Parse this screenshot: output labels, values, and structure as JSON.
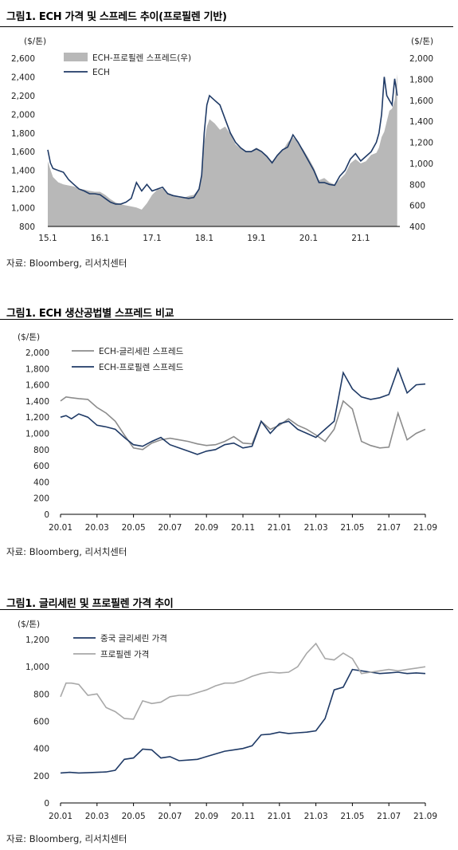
{
  "charts": [
    {
      "title": "그림1.  ECH 가격 및 스프레드 추이(프로필렌 기반)",
      "source": "자료: Bloomberg, 리서치센터",
      "chart_data": {
        "type": "area+line",
        "ylabel_left": "($/톤)",
        "ylabel_right": "($/톤)",
        "ylim_left": [
          800,
          2600
        ],
        "ylim_right": [
          400,
          2000
        ],
        "yticks_left": [
          "2,600",
          "2,400",
          "2,200",
          "2,000",
          "1,800",
          "1,600",
          "1,400",
          "1,200",
          "1,000",
          "800"
        ],
        "yticks_right": [
          "2,000",
          "1,800",
          "1,600",
          "1,400",
          "1,200",
          "1,000",
          "800",
          "600",
          "400"
        ],
        "xticks": [
          "15.1",
          "16.1",
          "17.1",
          "18.1",
          "19.1",
          "20.1",
          "21.1"
        ],
        "xlim": [
          2015.0,
          2021.75
        ],
        "series": [
          {
            "name": "ECH-프로필렌 스프레드(우)",
            "axis": "right",
            "color": "#b8b8b8",
            "kind": "area",
            "x": [
              2015.0,
              2015.05,
              2015.1,
              2015.2,
              2015.3,
              2015.4,
              2015.5,
              2015.6,
              2015.7,
              2015.8,
              2015.9,
              2016.0,
              2016.1,
              2016.2,
              2016.3,
              2016.4,
              2016.5,
              2016.6,
              2016.7,
              2016.8,
              2016.9,
              2017.0,
              2017.1,
              2017.2,
              2017.3,
              2017.4,
              2017.5,
              2017.6,
              2017.7,
              2017.8,
              2017.9,
              2017.95,
              2018.0,
              2018.05,
              2018.1,
              2018.2,
              2018.3,
              2018.4,
              2018.5,
              2018.6,
              2018.7,
              2018.8,
              2018.9,
              2019.0,
              2019.1,
              2019.2,
              2019.3,
              2019.4,
              2019.5,
              2019.6,
              2019.7,
              2019.8,
              2019.9,
              2020.0,
              2020.1,
              2020.2,
              2020.3,
              2020.4,
              2020.5,
              2020.6,
              2020.7,
              2020.8,
              2020.9,
              2021.0,
              2021.1,
              2021.2,
              2021.3,
              2021.35,
              2021.4,
              2021.45,
              2021.5,
              2021.55,
              2021.6,
              2021.65,
              2021.7
            ],
            "values": [
              1020,
              940,
              870,
              820,
              800,
              790,
              780,
              760,
              750,
              740,
              730,
              730,
              700,
              660,
              630,
              610,
              600,
              590,
              580,
              560,
              620,
              700,
              750,
              760,
              720,
              700,
              680,
              670,
              690,
              700,
              760,
              900,
              1200,
              1350,
              1420,
              1380,
              1320,
              1350,
              1280,
              1180,
              1140,
              1120,
              1120,
              1150,
              1120,
              1060,
              1020,
              1080,
              1120,
              1200,
              1250,
              1200,
              1130,
              1050,
              960,
              840,
              860,
              820,
              800,
              850,
              900,
              1000,
              1040,
              1000,
              1020,
              1080,
              1100,
              1150,
              1250,
              1300,
              1400,
              1500,
              1520,
              1600,
              1850
            ]
          },
          {
            "name": "ECH",
            "axis": "left",
            "color": "#1f3a66",
            "kind": "line",
            "x": [
              2015.0,
              2015.05,
              2015.1,
              2015.2,
              2015.3,
              2015.4,
              2015.5,
              2015.6,
              2015.7,
              2015.8,
              2015.9,
              2016.0,
              2016.1,
              2016.2,
              2016.3,
              2016.4,
              2016.5,
              2016.6,
              2016.7,
              2016.8,
              2016.9,
              2017.0,
              2017.1,
              2017.2,
              2017.3,
              2017.4,
              2017.5,
              2017.6,
              2017.7,
              2017.8,
              2017.9,
              2017.95,
              2018.0,
              2018.05,
              2018.1,
              2018.2,
              2018.3,
              2018.4,
              2018.5,
              2018.6,
              2018.7,
              2018.8,
              2018.9,
              2019.0,
              2019.1,
              2019.2,
              2019.3,
              2019.4,
              2019.5,
              2019.6,
              2019.7,
              2019.8,
              2019.9,
              2020.0,
              2020.1,
              2020.2,
              2020.3,
              2020.4,
              2020.5,
              2020.6,
              2020.7,
              2020.8,
              2020.9,
              2021.0,
              2021.1,
              2021.2,
              2021.3,
              2021.35,
              2021.4,
              2021.45,
              2021.5,
              2021.55,
              2021.6,
              2021.65,
              2021.7
            ],
            "values": [
              1620,
              1480,
              1420,
              1400,
              1380,
              1300,
              1250,
              1200,
              1180,
              1150,
              1150,
              1140,
              1100,
              1060,
              1040,
              1040,
              1060,
              1100,
              1270,
              1180,
              1250,
              1180,
              1200,
              1220,
              1150,
              1130,
              1120,
              1110,
              1100,
              1110,
              1200,
              1350,
              1800,
              2100,
              2200,
              2150,
              2100,
              1950,
              1800,
              1700,
              1640,
              1600,
              1600,
              1630,
              1600,
              1550,
              1480,
              1560,
              1620,
              1650,
              1780,
              1700,
              1600,
              1500,
              1400,
              1270,
              1270,
              1250,
              1240,
              1340,
              1400,
              1520,
              1580,
              1500,
              1550,
              1600,
              1700,
              1800,
              2000,
              2400,
              2200,
              2150,
              2100,
              2380,
              2200
            ]
          }
        ]
      }
    },
    {
      "title": "그림1.  ECH 생산공법별 스프레드 비교",
      "source": "자료: Bloomberg, 리서치센터",
      "chart_data": {
        "type": "line",
        "ylabel": "($/톤)",
        "ylim": [
          0,
          2000
        ],
        "yticks": [
          "2,000",
          "1,800",
          "1,600",
          "1,400",
          "1,200",
          "1,000",
          "800",
          "600",
          "400",
          "200",
          "0"
        ],
        "xticks": [
          "20.01",
          "20.03",
          "20.05",
          "20.07",
          "20.09",
          "20.11",
          "21.01",
          "21.03",
          "21.05",
          "21.07",
          "21.09"
        ],
        "xlim": [
          0,
          20
        ],
        "series": [
          {
            "name": "ECH-글리세린 스프레드",
            "color": "#8c8c8c",
            "x": [
              0,
              0.3,
              0.6,
              1,
              1.5,
              2,
              2.5,
              3,
              3.5,
              4,
              4.5,
              5,
              5.5,
              6,
              6.5,
              7,
              7.5,
              8,
              8.5,
              9,
              9.5,
              10,
              10.5,
              11,
              11.5,
              12,
              12.5,
              13,
              13.5,
              14,
              14.5,
              15,
              15.5,
              16,
              16.5,
              17,
              17.5,
              18,
              18.5,
              19,
              19.5,
              20
            ],
            "values": [
              1400,
              1450,
              1440,
              1430,
              1420,
              1320,
              1250,
              1150,
              980,
              820,
              800,
              880,
              920,
              940,
              920,
              900,
              870,
              850,
              860,
              900,
              960,
              880,
              870,
              1150,
              1050,
              1100,
              1180,
              1100,
              1050,
              980,
              900,
              1050,
              1400,
              1300,
              900,
              850,
              820,
              830,
              1250,
              920,
              1000,
              1050
            ]
          },
          {
            "name": "ECH-프로필렌 스프레드",
            "color": "#1f3a66",
            "x": [
              0,
              0.3,
              0.6,
              1,
              1.5,
              2,
              2.5,
              3,
              3.5,
              4,
              4.5,
              5,
              5.5,
              6,
              6.5,
              7,
              7.5,
              8,
              8.5,
              9,
              9.5,
              10,
              10.5,
              11,
              11.5,
              12,
              12.5,
              13,
              13.5,
              14,
              14.5,
              15,
              15.5,
              16,
              16.5,
              17,
              17.5,
              18,
              18.5,
              19,
              19.5,
              20
            ],
            "values": [
              1200,
              1220,
              1180,
              1240,
              1200,
              1100,
              1080,
              1050,
              950,
              860,
              840,
              900,
              950,
              860,
              820,
              780,
              740,
              780,
              800,
              860,
              880,
              820,
              840,
              1150,
              1000,
              1120,
              1150,
              1050,
              1000,
              950,
              1050,
              1150,
              1750,
              1550,
              1450,
              1420,
              1440,
              1480,
              1800,
              1500,
              1600,
              1610
            ]
          }
        ]
      }
    },
    {
      "title": "그림1.  글리세린 및 프로필렌 가격 추이",
      "source": "자료: Bloomberg, 리서치센터",
      "chart_data": {
        "type": "line",
        "ylabel": "($/톤)",
        "ylim": [
          0,
          1200
        ],
        "yticks": [
          "1,200",
          "1,000",
          "800",
          "600",
          "400",
          "200",
          "0"
        ],
        "xticks": [
          "20.01",
          "20.03",
          "20.05",
          "20.07",
          "20.09",
          "20.11",
          "21.01",
          "21.03",
          "21.05",
          "21.07",
          "21.09"
        ],
        "xlim": [
          0,
          20
        ],
        "series": [
          {
            "name": "중국 글리세린 가격",
            "color": "#1f3a66",
            "x": [
              0,
              0.5,
              1,
              1.5,
              2,
              2.5,
              3,
              3.5,
              4,
              4.5,
              5,
              5.5,
              6,
              6.5,
              7,
              7.5,
              8,
              8.5,
              9,
              9.5,
              10,
              10.5,
              11,
              11.5,
              12,
              12.5,
              13,
              13.5,
              14,
              14.5,
              15,
              15.5,
              16,
              16.5,
              17,
              17.5,
              18,
              18.5,
              19,
              19.5,
              20
            ],
            "values": [
              220,
              225,
              220,
              222,
              225,
              228,
              240,
              320,
              330,
              395,
              390,
              330,
              340,
              310,
              315,
              320,
              340,
              360,
              380,
              390,
              400,
              420,
              500,
              505,
              520,
              510,
              515,
              520,
              530,
              620,
              830,
              850,
              980,
              970,
              960,
              950,
              955,
              960,
              950,
              955,
              950
            ]
          },
          {
            "name": "프로필렌 가격",
            "color": "#a8a8a8",
            "x": [
              0,
              0.3,
              0.6,
              1,
              1.5,
              2,
              2.5,
              3,
              3.5,
              4,
              4.5,
              5,
              5.5,
              6,
              6.5,
              7,
              7.5,
              8,
              8.5,
              9,
              9.5,
              10,
              10.5,
              11,
              11.5,
              12,
              12.5,
              13,
              13.5,
              14,
              14.5,
              15,
              15.5,
              16,
              16.5,
              17,
              17.5,
              18,
              18.5,
              19,
              19.5,
              20
            ],
            "values": [
              780,
              880,
              880,
              870,
              790,
              800,
              700,
              670,
              620,
              615,
              750,
              730,
              740,
              780,
              790,
              790,
              810,
              830,
              860,
              880,
              880,
              900,
              930,
              950,
              960,
              955,
              960,
              1000,
              1100,
              1170,
              1060,
              1050,
              1100,
              1060,
              950,
              960,
              970,
              980,
              970,
              980,
              990,
              1000
            ]
          }
        ]
      }
    }
  ]
}
